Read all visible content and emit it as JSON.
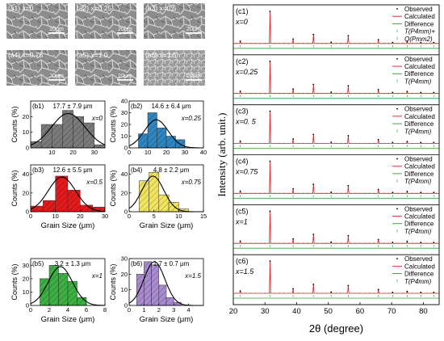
{
  "sem": {
    "panels": [
      {
        "label": "(a1)",
        "x_label": "x=0",
        "scale_bar": "20μm"
      },
      {
        "label": "(a2)",
        "x_label": "x=0.25",
        "scale_bar": "20μm"
      },
      {
        "label": "(a3)",
        "x_label": "x=0.5",
        "scale_bar": "20μm"
      },
      {
        "label": "(a4)",
        "x_label": "x=0.75",
        "scale_bar": "20μm"
      },
      {
        "label": "(a5)",
        "x_label": "x=1.0",
        "scale_bar": "20μm"
      },
      {
        "label": "(a6)",
        "x_label": "x=1.5",
        "scale_bar": "20μm"
      }
    ]
  },
  "chart_data": [
    {
      "type": "bar",
      "panel": "(b1)",
      "annotation": "17.7 ± 7.9 μm",
      "composition": "x=0",
      "color": "#7a7a7a",
      "xlabel": "Grain Size (μm)",
      "ylabel": "Counts (%)",
      "xlim": [
        0,
        35
      ],
      "ylim": [
        0,
        30
      ],
      "xticks": [
        "10",
        "20",
        "30"
      ],
      "yticks": [
        "0",
        "10",
        "20"
      ],
      "bins": [
        [
          0,
          5,
          4
        ],
        [
          5,
          10,
          15
        ],
        [
          10,
          15,
          15
        ],
        [
          15,
          20,
          24
        ],
        [
          20,
          25,
          20
        ],
        [
          25,
          30,
          16
        ],
        [
          30,
          35,
          2
        ]
      ],
      "fit": {
        "mu": 17.7,
        "sigma": 7.9,
        "peak": 22
      }
    },
    {
      "type": "bar",
      "panel": "(b2)",
      "annotation": "14.6 ± 6.4 μm",
      "composition": "x=0.25",
      "color": "#2e86c1",
      "xlabel": "Grain Size (μm)",
      "ylabel": "Counts (%)",
      "xlim": [
        0,
        40
      ],
      "ylim": [
        0,
        40
      ],
      "xticks": [
        "0",
        "10",
        "20",
        "30",
        "40"
      ],
      "yticks": [
        "0",
        "10",
        "20",
        "30",
        "40"
      ],
      "bins": [
        [
          5,
          10,
          12
        ],
        [
          10,
          15,
          30
        ],
        [
          15,
          20,
          17
        ],
        [
          20,
          25,
          10
        ],
        [
          25,
          30,
          7
        ]
      ],
      "fit": {
        "mu": 14.6,
        "sigma": 6.4,
        "peak": 24
      }
    },
    {
      "type": "bar",
      "panel": "(b3)",
      "annotation": "12.6 ± 5.5 μm",
      "composition": "x=0.5",
      "color": "#e31a1c",
      "xlabel": "Grain Size (μm)",
      "ylabel": "Counts (%)",
      "xlim": [
        0,
        30
      ],
      "ylim": [
        0,
        50
      ],
      "xticks": [
        "0",
        "10",
        "20",
        "30"
      ],
      "yticks": [
        "0",
        "20",
        "40"
      ],
      "bins": [
        [
          0,
          5,
          6
        ],
        [
          5,
          10,
          12
        ],
        [
          10,
          15,
          38
        ],
        [
          15,
          20,
          23
        ],
        [
          20,
          25,
          7
        ],
        [
          25,
          30,
          5
        ]
      ],
      "fit": {
        "mu": 12.6,
        "sigma": 5.5,
        "peak": 37
      }
    },
    {
      "type": "bar",
      "panel": "(b4)",
      "annotation": "4.8 ± 2.2 μm",
      "composition": "x=0.75",
      "color": "#f2e45f",
      "xlabel": "Grain Size (μm)",
      "ylabel": "Counts (%)",
      "xlim": [
        0,
        15
      ],
      "ylim": [
        0,
        50
      ],
      "xticks": [
        "0",
        "5",
        "10",
        "15"
      ],
      "yticks": [
        "0",
        "20",
        "40"
      ],
      "bins": [
        [
          2,
          4,
          33
        ],
        [
          4,
          6,
          42
        ],
        [
          6,
          8,
          18
        ],
        [
          8,
          10,
          10
        ],
        [
          10,
          12,
          3
        ]
      ],
      "fit": {
        "mu": 4.8,
        "sigma": 2.2,
        "peak": 38
      }
    },
    {
      "type": "bar",
      "panel": "(b5)",
      "annotation": "3.2 ± 1.3 μm",
      "composition": "x=1",
      "color": "#3cb043",
      "xlabel": "Grain Size (μm)",
      "ylabel": "Counts (%)",
      "xlim": [
        0,
        8
      ],
      "ylim": [
        0,
        35
      ],
      "xticks": [
        "0",
        "2",
        "4",
        "6",
        "8"
      ],
      "yticks": [
        "0",
        "10",
        "20",
        "30"
      ],
      "bins": [
        [
          1,
          2,
          20
        ],
        [
          2,
          3,
          30
        ],
        [
          3,
          4,
          24
        ],
        [
          4,
          5,
          18
        ],
        [
          5,
          6,
          6
        ]
      ],
      "fit": {
        "mu": 3.2,
        "sigma": 1.3,
        "peak": 29
      }
    },
    {
      "type": "bar",
      "panel": "(b6)",
      "annotation": "1.7 ± 0.7 μm",
      "composition": "x=1.5",
      "color": "#a98bd1",
      "xlabel": "Grain Size (μm)",
      "ylabel": "Counts (%)",
      "xlim": [
        0,
        5
      ],
      "ylim": [
        0,
        30
      ],
      "xticks": [
        "0",
        "1",
        "2",
        "3",
        "4"
      ],
      "yticks": [
        "0",
        "10",
        "20",
        "30"
      ],
      "bins": [
        [
          0.5,
          1,
          20
        ],
        [
          1,
          1.5,
          28
        ],
        [
          1.5,
          2,
          26
        ],
        [
          2,
          2.5,
          13
        ],
        [
          2.5,
          3,
          5
        ],
        [
          3,
          3.5,
          2
        ]
      ],
      "fit": {
        "mu": 1.7,
        "sigma": 0.7,
        "peak": 28
      }
    },
    {
      "type": "line",
      "panel": "(c)",
      "xlabel": "2θ (degree)",
      "ylabel": "Intensity (arb. unit.)",
      "xlim": [
        20,
        85
      ],
      "xticks": [
        "20",
        "30",
        "40",
        "50",
        "60",
        "70",
        "80"
      ],
      "peaks": [
        [
          22.2,
          0.07
        ],
        [
          31.6,
          1.0
        ],
        [
          38.9,
          0.14
        ],
        [
          45.3,
          0.28
        ],
        [
          50.9,
          0.04
        ],
        [
          56.3,
          0.24
        ],
        [
          65.8,
          0.12
        ],
        [
          70.3,
          0.03
        ],
        [
          74.9,
          0.06
        ],
        [
          79.2,
          0.03
        ],
        [
          83.3,
          0.03
        ]
      ],
      "series_colors": {
        "observed": "#000000",
        "calculated": "#e31a1c",
        "difference": "#2ca02c",
        "ticks": "#3cb043"
      },
      "subplots": [
        {
          "label": "(c1)",
          "composition": "x=0",
          "legend": [
            "Observed",
            "Calculated",
            "Difference",
            "T(P4mm)+",
            "O(Pmm2)"
          ]
        },
        {
          "label": "(c2)",
          "composition": "x=0.25",
          "legend": [
            "Observed",
            "Calculated",
            "Difference",
            "T(P4mm)"
          ]
        },
        {
          "label": "(c3)",
          "composition": "x=0. 5",
          "legend": [
            "Observed",
            "Calculated",
            "Difference",
            "T(P4mm)"
          ]
        },
        {
          "label": "(c4)",
          "composition": "x=0.75",
          "legend": [
            "Observed",
            "Calculated",
            "Difference",
            "T(P4mm)"
          ]
        },
        {
          "label": "(c5)",
          "composition": "x=1",
          "legend": [
            "Observed",
            "Calculated",
            "Difference",
            "T(P4mm)"
          ]
        },
        {
          "label": "(c6)",
          "composition": "x=1.5",
          "legend": [
            "Observed",
            "Calculated",
            "Difference",
            "T(P4mm)"
          ]
        }
      ]
    }
  ]
}
